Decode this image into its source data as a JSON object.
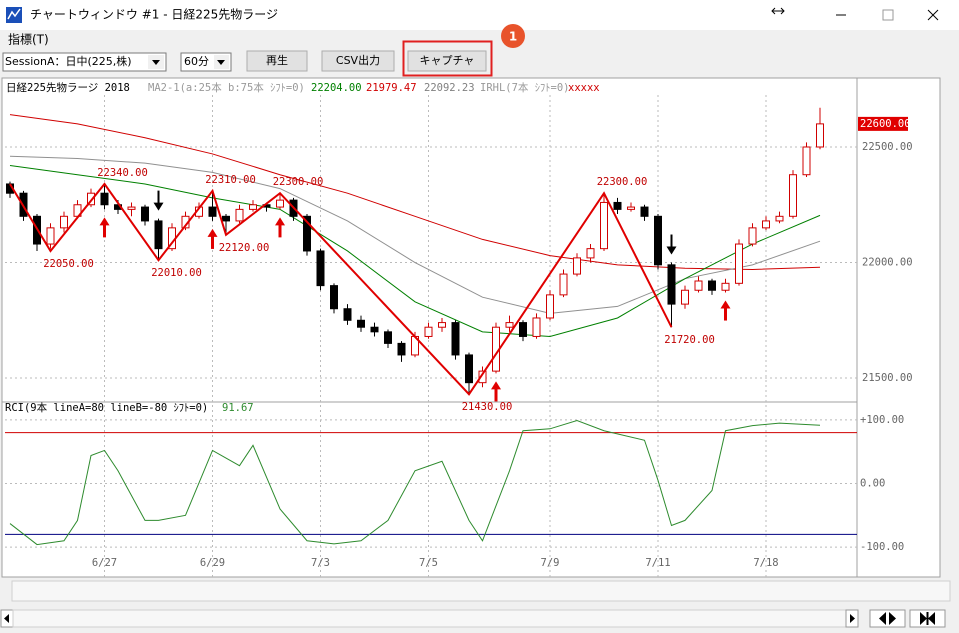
{
  "window": {
    "title": "チャートウィンドウ #1 - 日経225先物ラージ"
  },
  "menu": [
    "指標(T)"
  ],
  "toolbar": {
    "session": "SessionA：日中(225,株)",
    "interval": "60分",
    "buttons": [
      "再生",
      "CSV出力",
      "キャプチャ"
    ],
    "badge": "1"
  },
  "chart_data": {
    "type": "candlestick",
    "title": "日経225先物ラージ 2018",
    "ma_label": "MA2-1(a:25本 b:75本 ｼﾌﾄ=0)",
    "ma_legend": [
      {
        "value": 22204.0,
        "label": "22204.00",
        "color": "#008000"
      },
      {
        "value": 21979.47,
        "label": "21979.47",
        "color": "#d00000"
      },
      {
        "value": 22092.23,
        "label": "22092.23",
        "color": "#808080"
      }
    ],
    "signal_label": "IRHL(7本 ｼﾌﾄ=0)",
    "signal_text": "xxxxx",
    "categories": [
      null,
      null,
      null,
      null,
      null,
      null,
      null,
      "6/27",
      null,
      null,
      null,
      null,
      null,
      null,
      null,
      "6/29",
      null,
      null,
      null,
      null,
      null,
      null,
      null,
      "7/3",
      null,
      null,
      null,
      null,
      null,
      null,
      null,
      "7/5",
      null,
      null,
      null,
      null,
      null,
      null,
      null,
      null,
      "7/9",
      null,
      null,
      null,
      null,
      null,
      null,
      null,
      "7/11",
      null,
      null,
      null,
      null,
      null,
      null,
      null,
      "7/18",
      null,
      null,
      null,
      null
    ],
    "candles": [
      [
        22340,
        22350,
        22280,
        22300
      ],
      [
        22300,
        22310,
        22180,
        22200
      ],
      [
        22200,
        22210,
        22050,
        22080
      ],
      [
        22080,
        22170,
        22060,
        22150
      ],
      [
        22150,
        22220,
        22130,
        22200
      ],
      [
        22200,
        22270,
        22190,
        22250
      ],
      [
        22250,
        22320,
        22240,
        22300
      ],
      [
        22300,
        22340,
        22230,
        22250
      ],
      [
        22250,
        22270,
        22210,
        22230
      ],
      [
        22230,
        22260,
        22200,
        22240
      ],
      [
        22240,
        22250,
        22160,
        22180
      ],
      [
        22180,
        22190,
        22010,
        22060
      ],
      [
        22060,
        22170,
        22050,
        22150
      ],
      [
        22150,
        22220,
        22140,
        22200
      ],
      [
        22200,
        22260,
        22190,
        22240
      ],
      [
        22240,
        22310,
        22180,
        22200
      ],
      [
        22200,
        22210,
        22120,
        22180
      ],
      [
        22180,
        22250,
        22170,
        22230
      ],
      [
        22230,
        22270,
        22220,
        22250
      ],
      [
        22250,
        22260,
        22220,
        22240
      ],
      [
        22240,
        22300,
        22230,
        22270
      ],
      [
        22270,
        22280,
        22180,
        22200
      ],
      [
        22200,
        22210,
        22030,
        22050
      ],
      [
        22050,
        22060,
        21880,
        21900
      ],
      [
        21900,
        21910,
        21780,
        21800
      ],
      [
        21800,
        21820,
        21730,
        21750
      ],
      [
        21750,
        21770,
        21700,
        21720
      ],
      [
        21720,
        21740,
        21680,
        21700
      ],
      [
        21700,
        21710,
        21630,
        21650
      ],
      [
        21650,
        21660,
        21570,
        21600
      ],
      [
        21600,
        21700,
        21590,
        21680
      ],
      [
        21680,
        21740,
        21670,
        21720
      ],
      [
        21720,
        21760,
        21700,
        21740
      ],
      [
        21740,
        21750,
        21580,
        21600
      ],
      [
        21600,
        21610,
        21430,
        21480
      ],
      [
        21480,
        21550,
        21460,
        21530
      ],
      [
        21530,
        21740,
        21520,
        21720
      ],
      [
        21720,
        21770,
        21700,
        21740
      ],
      [
        21740,
        21750,
        21660,
        21680
      ],
      [
        21680,
        21780,
        21670,
        21760
      ],
      [
        21760,
        21880,
        21750,
        21860
      ],
      [
        21860,
        21970,
        21850,
        21950
      ],
      [
        21950,
        22040,
        21940,
        22020
      ],
      [
        22020,
        22080,
        22000,
        22060
      ],
      [
        22060,
        22300,
        22050,
        22260
      ],
      [
        22260,
        22280,
        22210,
        22230
      ],
      [
        22230,
        22260,
        22220,
        22240
      ],
      [
        22240,
        22250,
        22180,
        22200
      ],
      [
        22200,
        22210,
        21970,
        21990
      ],
      [
        21990,
        22000,
        21720,
        21820
      ],
      [
        21820,
        21900,
        21800,
        21880
      ],
      [
        21880,
        21940,
        21870,
        21920
      ],
      [
        21920,
        21930,
        21860,
        21880
      ],
      [
        21880,
        21930,
        21870,
        21910
      ],
      [
        21910,
        22100,
        21900,
        22080
      ],
      [
        22080,
        22170,
        22070,
        22150
      ],
      [
        22150,
        22200,
        22140,
        22180
      ],
      [
        22180,
        22220,
        22170,
        22200
      ],
      [
        22200,
        22400,
        22190,
        22380
      ],
      [
        22380,
        22520,
        22370,
        22500
      ],
      [
        22500,
        22670,
        22490,
        22600
      ]
    ],
    "up_color": "#d00000",
    "down_color": "#000000",
    "ylim": [
      21405,
      22725
    ],
    "yticks": [
      {
        "value": 21500,
        "label": "21500.00"
      },
      {
        "value": 22000,
        "label": "22000.00"
      },
      {
        "value": 22500,
        "label": "22500.00"
      }
    ],
    "ma_series": [
      {
        "color": "#d00000",
        "x": [
          0,
          5,
          10,
          15,
          20,
          25,
          30,
          35,
          40,
          45,
          50,
          55,
          60
        ],
        "values": [
          22640,
          22600,
          22540,
          22470,
          22380,
          22300,
          22200,
          22100,
          22030,
          21990,
          21975,
          21970,
          21979.47
        ]
      },
      {
        "color": "#909090",
        "x": [
          0,
          5,
          10,
          15,
          20,
          25,
          30,
          35,
          40,
          45,
          50,
          55,
          60
        ],
        "values": [
          22460,
          22450,
          22430,
          22390,
          22320,
          22180,
          22000,
          21850,
          21780,
          21810,
          21930,
          21990,
          22092.23
        ]
      },
      {
        "color": "#008000",
        "x": [
          0,
          5,
          10,
          15,
          20,
          25,
          30,
          35,
          40,
          45,
          50,
          55,
          60
        ],
        "values": [
          22420,
          22380,
          22340,
          22280,
          22230,
          22050,
          21830,
          21700,
          21680,
          21760,
          21930,
          22080,
          22204
        ]
      }
    ],
    "zigzag": {
      "color": "#e00000",
      "x": [
        0,
        3,
        7,
        11,
        15,
        16,
        20,
        34,
        44,
        49
      ],
      "values": [
        22340,
        22050,
        22340,
        22010,
        22310,
        22120,
        22300,
        21430,
        22300,
        21720
      ],
      "value_labels": [
        null,
        "22050.00",
        "22340.00",
        "22010.00",
        "22310.00",
        "22120.00",
        "22300.00",
        "21430.00",
        "22300.00",
        "21720.00"
      ]
    },
    "last_price": {
      "value": 22600,
      "label": "22600.00"
    },
    "signals": {
      "up": [
        7,
        15,
        20,
        36,
        53
      ],
      "down": [
        11,
        49
      ]
    },
    "rci": {
      "title": "RCI(9本 lineA=80 lineB=-80 ｼﾌﾄ=0)",
      "current": {
        "value": 91.67,
        "label": "91.67"
      },
      "color": "#2e8b2e",
      "x": [
        0,
        2,
        4,
        5,
        6,
        7,
        8,
        10,
        11,
        13,
        15,
        17,
        18,
        20,
        22,
        24,
        26,
        28,
        30,
        32,
        34,
        35,
        37,
        38,
        40,
        42,
        44,
        47,
        48,
        49,
        50,
        52,
        53,
        55,
        57,
        60
      ],
      "values": [
        -63,
        -96,
        -90,
        -58,
        44,
        52,
        20,
        -58,
        -58,
        -50,
        52,
        28,
        60,
        -40,
        -90,
        -95,
        -90,
        -58,
        20,
        35,
        -58,
        -90,
        20,
        83,
        86,
        99,
        83,
        68,
        5,
        -66,
        -58,
        -11,
        83,
        91,
        95,
        91.67
      ],
      "ylim": [
        -147,
        125
      ],
      "yticks": [
        {
          "value": -100,
          "label": "-100.00"
        },
        {
          "value": 0,
          "label": "0.00"
        },
        {
          "value": 100,
          "label": "+100.00"
        }
      ],
      "lines": [
        {
          "value": 80,
          "color": "#d00000"
        },
        {
          "value": -80,
          "color": "#000080"
        }
      ]
    }
  }
}
